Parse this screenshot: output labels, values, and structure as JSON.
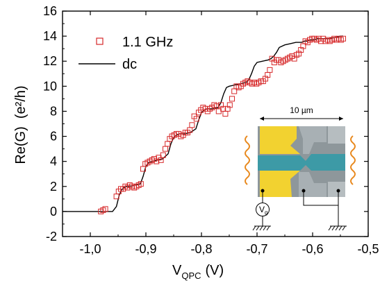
{
  "chart_data": {
    "type": "scatter",
    "xlabel": "V",
    "xlabel_sub": "QPC",
    "xlabel_unit": "(V)",
    "ylabel": "Re(G)  (e²/h)",
    "xlim": [
      -1.05,
      -0.5
    ],
    "ylim": [
      -2,
      16
    ],
    "xticks": [
      -1.0,
      -0.9,
      -0.8,
      -0.7,
      -0.6,
      -0.5
    ],
    "xtick_labels": [
      "-1,0",
      "-0,9",
      "-0,8",
      "-0,7",
      "-0,6",
      "-0,5"
    ],
    "yticks": [
      -2,
      0,
      2,
      4,
      6,
      8,
      10,
      12,
      14,
      16
    ],
    "ytick_labels": [
      "-2",
      "0",
      "2",
      "4",
      "6",
      "8",
      "10",
      "12",
      "14",
      "16"
    ],
    "legend_position": "top-left",
    "series": [
      {
        "name": "1.1 GHz",
        "style": "open-square-markers",
        "color": "#d62728",
        "x": [
          -0.981,
          -0.977,
          -0.973,
          -0.953,
          -0.949,
          -0.945,
          -0.941,
          -0.937,
          -0.933,
          -0.929,
          -0.925,
          -0.921,
          -0.917,
          -0.913,
          -0.909,
          -0.905,
          -0.901,
          -0.897,
          -0.893,
          -0.889,
          -0.885,
          -0.881,
          -0.877,
          -0.873,
          -0.869,
          -0.865,
          -0.861,
          -0.857,
          -0.853,
          -0.849,
          -0.845,
          -0.841,
          -0.837,
          -0.833,
          -0.829,
          -0.825,
          -0.821,
          -0.817,
          -0.813,
          -0.809,
          -0.805,
          -0.801,
          -0.797,
          -0.793,
          -0.789,
          -0.785,
          -0.781,
          -0.777,
          -0.773,
          -0.769,
          -0.765,
          -0.761,
          -0.757,
          -0.753,
          -0.749,
          -0.745,
          -0.741,
          -0.737,
          -0.733,
          -0.729,
          -0.725,
          -0.721,
          -0.717,
          -0.713,
          -0.709,
          -0.705,
          -0.701,
          -0.697,
          -0.693,
          -0.689,
          -0.685,
          -0.681,
          -0.677,
          -0.673,
          -0.669,
          -0.665,
          -0.661,
          -0.657,
          -0.653,
          -0.649,
          -0.645,
          -0.641,
          -0.637,
          -0.633,
          -0.629,
          -0.625,
          -0.621,
          -0.617,
          -0.613,
          -0.609,
          -0.605,
          -0.601,
          -0.597,
          -0.593,
          -0.589,
          -0.585,
          -0.581,
          -0.577,
          -0.573,
          -0.569,
          -0.565,
          -0.561,
          -0.557,
          -0.553,
          -0.549,
          -0.545
        ],
        "y": [
          0.0,
          0.1,
          0.2,
          1.2,
          1.6,
          1.8,
          1.8,
          2.0,
          1.9,
          2.1,
          2.0,
          1.9,
          2.0,
          2.1,
          2.2,
          3.4,
          3.8,
          3.9,
          4.0,
          4.1,
          4.2,
          4.0,
          4.3,
          4.1,
          4.5,
          5.0,
          5.4,
          5.8,
          6.0,
          6.1,
          6.2,
          6.2,
          6.0,
          6.1,
          6.3,
          6.3,
          6.5,
          6.9,
          7.6,
          7.4,
          7.9,
          8.1,
          8.3,
          8.2,
          8.0,
          8.2,
          8.3,
          8.5,
          8.4,
          8.0,
          8.5,
          8.2,
          7.8,
          8.2,
          8.5,
          9.0,
          9.6,
          10.0,
          9.9,
          10.0,
          10.2,
          10.3,
          10.4,
          10.3,
          10.2,
          10.3,
          10.2,
          10.3,
          10.4,
          10.4,
          10.6,
          10.9,
          11.3,
          12.2,
          11.9,
          12.1,
          12.1,
          11.9,
          12.0,
          12.1,
          12.2,
          12.3,
          12.4,
          12.2,
          12.5,
          12.6,
          12.9,
          13.2,
          13.6,
          13.5,
          13.7,
          13.8,
          13.8,
          13.7,
          13.8,
          13.6,
          13.8,
          13.6,
          13.7,
          13.6,
          13.7,
          13.8,
          13.7,
          13.8,
          13.7,
          13.8
        ]
      },
      {
        "name": "dc",
        "style": "line",
        "color": "#000000",
        "x": [
          -1.05,
          -0.96,
          -0.953,
          -0.948,
          -0.944,
          -0.94,
          -0.935,
          -0.93,
          -0.92,
          -0.91,
          -0.905,
          -0.9,
          -0.895,
          -0.888,
          -0.88,
          -0.87,
          -0.86,
          -0.855,
          -0.85,
          -0.845,
          -0.84,
          -0.83,
          -0.82,
          -0.81,
          -0.805,
          -0.8,
          -0.795,
          -0.79,
          -0.78,
          -0.77,
          -0.765,
          -0.76,
          -0.755,
          -0.75,
          -0.74,
          -0.73,
          -0.72,
          -0.715,
          -0.71,
          -0.705,
          -0.7,
          -0.69,
          -0.68,
          -0.675,
          -0.67,
          -0.665,
          -0.66,
          -0.65,
          -0.64,
          -0.63,
          -0.62,
          -0.615,
          -0.61,
          -0.605,
          -0.6,
          -0.59,
          -0.58,
          -0.57,
          -0.56,
          -0.55,
          -0.545
        ],
        "y": [
          0.0,
          0.0,
          0.4,
          1.3,
          1.7,
          1.9,
          2.0,
          2.0,
          2.1,
          2.2,
          2.8,
          3.6,
          3.9,
          4.0,
          4.1,
          4.2,
          4.6,
          5.4,
          5.9,
          6.1,
          6.2,
          6.2,
          6.3,
          6.6,
          7.3,
          7.9,
          8.1,
          8.2,
          8.2,
          8.3,
          8.7,
          9.4,
          9.9,
          10.0,
          10.1,
          10.2,
          10.3,
          10.5,
          11.0,
          11.6,
          11.9,
          12.0,
          12.1,
          12.2,
          12.4,
          12.7,
          13.1,
          13.3,
          13.4,
          13.5,
          13.5,
          13.6,
          13.6,
          13.7,
          13.7,
          13.8,
          13.8,
          13.8,
          13.9,
          14.0,
          14.0
        ]
      }
    ]
  },
  "inset": {
    "scale_label": "10 µm",
    "gate_label": "V",
    "gate_sub": "g",
    "colors": {
      "gate": "#f2d230",
      "channel": "#3d9aa6",
      "contact": "#a8b0b4",
      "wave": "#e8891e"
    }
  }
}
